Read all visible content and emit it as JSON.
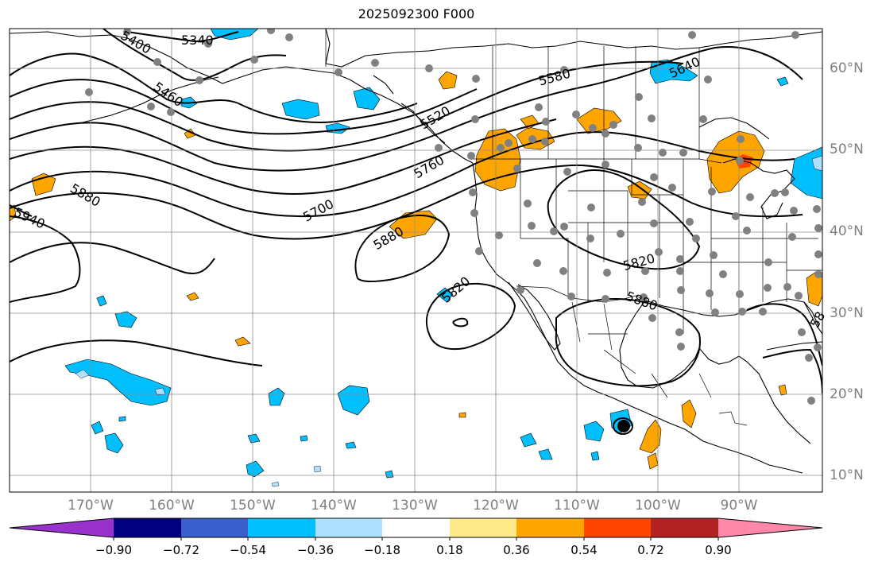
{
  "title": "2025092300 F000",
  "colors": {
    "land_outline": "#000000",
    "contour": "#000000",
    "grid": "#8c8c8c",
    "station": "#808080",
    "positive_mid": "#ffa500",
    "positive_high": "#ff4500",
    "negative_mid": "#00bfff",
    "negative_low": "#b0e0ff"
  },
  "map": {
    "lon_labels": [
      "170°W",
      "160°W",
      "150°W",
      "140°W",
      "130°W",
      "120°W",
      "110°W",
      "100°W",
      "90°W"
    ],
    "lat_labels": [
      "60°N",
      "50°N",
      "40°N",
      "30°N",
      "20°N",
      "10°N"
    ],
    "contour_labels": [
      "5340",
      "5400",
      "5460",
      "5520",
      "5580",
      "5640",
      "5760",
      "5700",
      "5880",
      "5940",
      "5880",
      "5820",
      "5820",
      "5880",
      "58"
    ]
  },
  "colorbar": {
    "colors": [
      "#9932cc",
      "#000080",
      "#3a5fcd",
      "#00bfff",
      "#b0e0ff",
      "#ffffff",
      "#ffeb8a",
      "#ffa500",
      "#ff4500",
      "#b22222",
      "#ff88aa"
    ],
    "tick_labels": [
      "−0.90",
      "−0.72",
      "−0.54",
      "−0.36",
      "−0.18",
      "0.18",
      "0.36",
      "0.54",
      "0.72",
      "0.90"
    ]
  }
}
